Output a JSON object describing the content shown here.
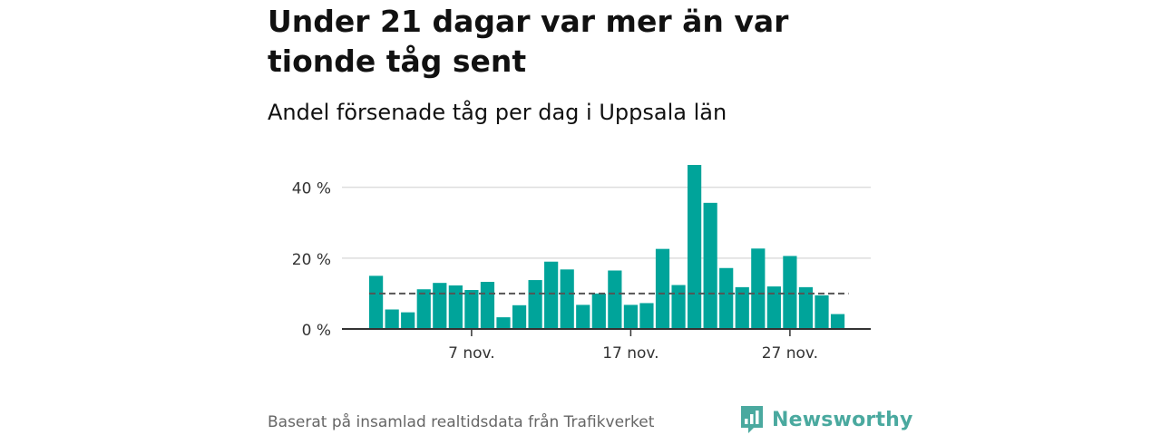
{
  "title": "Under 21 dagar var mer än var tionde tåg sent",
  "subtitle": "Andel försenade tåg per dag i Uppsala län",
  "source": "Baserat på insamlad realtidsdata från Trafikverket",
  "brand": {
    "name": "Newsworthy",
    "icon": "newsworthy-logo-icon",
    "color": "#4aa99f"
  },
  "colors": {
    "bar": "#00a49a",
    "reference_line": "#555555",
    "grid": "#dddddd",
    "axis": "#333333"
  },
  "chart_data": {
    "type": "bar",
    "x": [
      "2023-11-01",
      "2023-11-02",
      "2023-11-03",
      "2023-11-04",
      "2023-11-05",
      "2023-11-06",
      "2023-11-07",
      "2023-11-08",
      "2023-11-09",
      "2023-11-10",
      "2023-11-11",
      "2023-11-12",
      "2023-11-13",
      "2023-11-14",
      "2023-11-15",
      "2023-11-16",
      "2023-11-17",
      "2023-11-18",
      "2023-11-19",
      "2023-11-20",
      "2023-11-21",
      "2023-11-22",
      "2023-11-23",
      "2023-11-24",
      "2023-11-25",
      "2023-11-26",
      "2023-11-27",
      "2023-11-28",
      "2023-11-29",
      "2023-11-30"
    ],
    "values": [
      15,
      5.5,
      4.7,
      11.2,
      13,
      12.3,
      11,
      13.3,
      3.3,
      6.7,
      13.8,
      19,
      16.8,
      6.8,
      10,
      16.5,
      6.8,
      7.3,
      22.6,
      12.4,
      46.3,
      35.6,
      17.2,
      11.8,
      22.7,
      12,
      20.6,
      11.8,
      9.5,
      4.2
    ],
    "reference_line": 10,
    "ylim": [
      0,
      46.3
    ],
    "yticks": [
      0,
      20,
      40
    ],
    "ytick_labels": [
      "0 %",
      "20 %",
      "40 %"
    ],
    "xtick_labels": [
      {
        "x": "2023-11-07",
        "label": "7 nov."
      },
      {
        "x": "2023-11-17",
        "label": "17 nov."
      },
      {
        "x": "2023-11-27",
        "label": "27 nov."
      }
    ],
    "title": "Under 21 dagar var mer än var tionde tåg sent",
    "subtitle": "Andel försenade tåg per dag i Uppsala län",
    "xlabel": "",
    "ylabel": "",
    "grid": true
  }
}
